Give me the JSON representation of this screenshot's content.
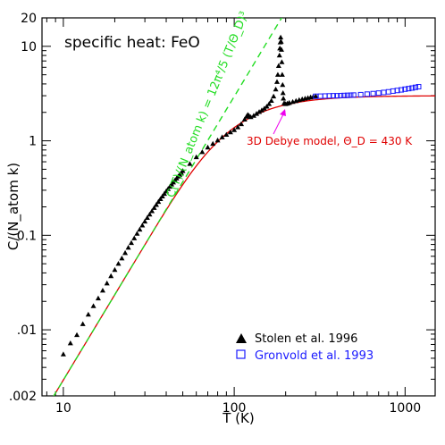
{
  "chart_data": {
    "type": "scatter",
    "title": "specific heat: FeO",
    "xlabel": "T (K)",
    "ylabel": "C/(N_atom k)",
    "xscale": "log",
    "yscale": "log",
    "xlim": [
      7.5,
      1500
    ],
    "ylim": [
      0.002,
      20
    ],
    "x_ticks": [
      10,
      100,
      1000
    ],
    "x_tick_labels": [
      "10",
      "100",
      "1000"
    ],
    "y_ticks": [
      0.002,
      0.01,
      0.1,
      1,
      10,
      20
    ],
    "y_tick_labels": [
      ".002",
      ".01",
      "0.1",
      "1",
      "10",
      "20"
    ],
    "grid": false,
    "legend": "bottom-right",
    "annotations": {
      "debye_label": "3D Debye model, Θ_D = 430 K",
      "t3_label": "C(T)/(N_atom k) = 12π⁴/5 (T/Θ_D)³"
    },
    "colors": {
      "axes": "#000000",
      "debye": "#e00000",
      "t3": "#22dd22",
      "stolen": "#000000",
      "gronvold": "#1a1aff",
      "arrow": "#ee00ee"
    },
    "series": [
      {
        "name": "Stolen et al. 1996",
        "marker": "filled-triangle",
        "x": [
          10,
          11,
          12,
          13,
          14,
          15,
          16,
          17,
          18,
          19,
          20,
          21,
          22,
          23,
          24,
          25,
          26,
          27,
          28,
          29,
          30,
          31,
          32,
          33,
          34,
          35,
          36,
          37,
          38,
          39,
          40,
          41,
          42,
          43,
          44,
          45,
          46,
          47,
          48,
          49,
          50,
          55,
          60,
          65,
          70,
          75,
          80,
          85,
          90,
          95,
          100,
          105,
          110,
          115,
          118,
          120,
          122,
          125,
          130,
          135,
          140,
          145,
          150,
          155,
          160,
          165,
          170,
          175,
          178,
          180,
          182,
          184,
          185,
          186,
          187,
          188,
          189,
          190,
          191,
          192,
          193,
          194,
          196,
          200,
          205,
          210,
          220,
          230,
          240,
          250,
          260,
          270,
          280,
          290,
          300
        ],
        "y": [
          0.0055,
          0.0072,
          0.0088,
          0.0115,
          0.0145,
          0.0178,
          0.0215,
          0.026,
          0.031,
          0.037,
          0.043,
          0.05,
          0.057,
          0.065,
          0.074,
          0.083,
          0.093,
          0.104,
          0.115,
          0.127,
          0.14,
          0.153,
          0.166,
          0.18,
          0.195,
          0.21,
          0.226,
          0.242,
          0.258,
          0.275,
          0.292,
          0.309,
          0.327,
          0.345,
          0.363,
          0.381,
          0.4,
          0.419,
          0.438,
          0.457,
          0.48,
          0.57,
          0.67,
          0.76,
          0.85,
          0.93,
          1.01,
          1.09,
          1.16,
          1.23,
          1.3,
          1.39,
          1.5,
          1.68,
          1.8,
          1.88,
          1.84,
          1.78,
          1.84,
          1.93,
          2.02,
          2.1,
          2.19,
          2.3,
          2.45,
          2.65,
          2.95,
          3.5,
          4.2,
          5.0,
          6.2,
          8.0,
          9.5,
          11.0,
          12.4,
          11.2,
          9.2,
          6.8,
          5.0,
          3.9,
          3.2,
          2.8,
          2.5,
          2.45,
          2.48,
          2.52,
          2.58,
          2.64,
          2.7,
          2.75,
          2.8,
          2.84,
          2.88,
          2.92,
          2.96
        ]
      },
      {
        "name": "Gronvold et al. 1993",
        "marker": "open-square",
        "x": [
          300,
          320,
          340,
          360,
          380,
          400,
          420,
          440,
          460,
          480,
          500,
          550,
          600,
          650,
          700,
          750,
          800,
          850,
          900,
          950,
          1000,
          1050,
          1100,
          1150,
          1200
        ],
        "y": [
          2.96,
          2.97,
          2.98,
          2.99,
          3.0,
          3.0,
          3.01,
          3.02,
          3.03,
          3.04,
          3.05,
          3.08,
          3.12,
          3.16,
          3.2,
          3.25,
          3.3,
          3.36,
          3.41,
          3.46,
          3.52,
          3.57,
          3.62,
          3.68,
          3.74
        ]
      }
    ],
    "curves": [
      {
        "kind": "debye",
        "theta_D": 430,
        "x_range": [
          7.5,
          1500
        ],
        "style": "solid"
      },
      {
        "kind": "t3",
        "theta_D": 430,
        "x_range": [
          7.5,
          220
        ],
        "style": "dashed"
      }
    ]
  },
  "legend": [
    {
      "label": "Stolen et al. 1996",
      "marker": "filled-triangle"
    },
    {
      "label": "Gronvold et al. 1993",
      "marker": "open-square"
    }
  ]
}
